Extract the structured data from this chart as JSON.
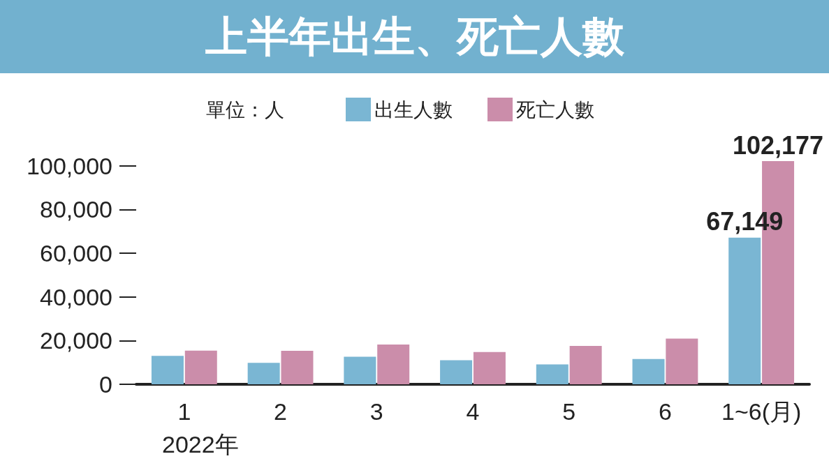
{
  "chart_data": {
    "type": "bar",
    "title": "上半年出生、死亡人數",
    "categories": [
      "1",
      "2",
      "3",
      "4",
      "5",
      "6",
      "1~6(月)"
    ],
    "series": [
      {
        "name": "出生人數",
        "color": "#7ab6d3",
        "values": [
          13000,
          9800,
          12600,
          11000,
          9100,
          11600,
          67149
        ],
        "value_labels": [
          null,
          null,
          null,
          null,
          null,
          null,
          "67,149"
        ]
      },
      {
        "name": "死亡人數",
        "color": "#cb8daa",
        "values": [
          15400,
          15300,
          18200,
          14800,
          17600,
          20900,
          102177
        ],
        "value_labels": [
          null,
          null,
          null,
          null,
          null,
          null,
          "102,177"
        ]
      }
    ],
    "ylim": [
      0,
      102177
    ],
    "yticks": [
      0,
      {
        "value": 20000,
        "label": "20,000"
      },
      {
        "value": 40000,
        "label": "40,000"
      },
      {
        "value": 60000,
        "label": "60,000"
      },
      {
        "value": 80000,
        "label": "80,000"
      },
      {
        "value": 100000,
        "label": "100,000"
      }
    ],
    "grid": false,
    "legend": "top",
    "annotations": [
      "單位：人",
      "2022年"
    ]
  }
}
